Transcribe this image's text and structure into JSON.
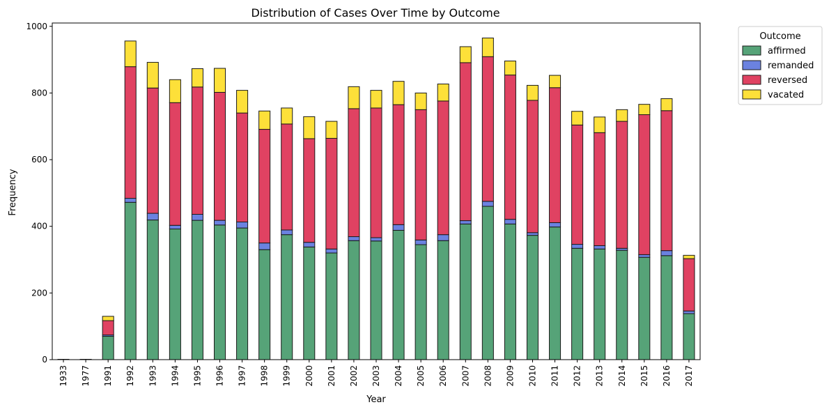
{
  "chart_data": {
    "type": "bar",
    "stacked": true,
    "title": "Distribution of Cases Over Time by Outcome",
    "xlabel": "Year",
    "ylabel": "Frequency",
    "ylim": [
      0,
      1010
    ],
    "yticks": [
      0,
      200,
      400,
      600,
      800,
      1000
    ],
    "grid": false,
    "legend": {
      "title": "Outcome",
      "placement": "outside-upper-right"
    },
    "categories": [
      "1933",
      "1977",
      "1991",
      "1992",
      "1993",
      "1994",
      "1995",
      "1996",
      "1997",
      "1998",
      "1999",
      "2000",
      "2001",
      "2002",
      "2003",
      "2004",
      "2005",
      "2006",
      "2007",
      "2008",
      "2009",
      "2010",
      "2011",
      "2012",
      "2013",
      "2014",
      "2015",
      "2016",
      "2017"
    ],
    "series": [
      {
        "name": "affirmed",
        "color": "#56a378",
        "values": [
          1,
          1,
          70,
          472,
          419,
          392,
          418,
          404,
          395,
          330,
          375,
          338,
          320,
          357,
          356,
          388,
          345,
          357,
          407,
          460,
          407,
          373,
          398,
          334,
          332,
          328,
          307,
          312,
          138
        ]
      },
      {
        "name": "remanded",
        "color": "#6b82e0",
        "values": [
          0,
          0,
          4,
          12,
          20,
          11,
          18,
          14,
          18,
          20,
          14,
          14,
          12,
          12,
          10,
          17,
          14,
          18,
          10,
          15,
          14,
          8,
          13,
          12,
          10,
          6,
          8,
          15,
          8
        ]
      },
      {
        "name": "reversed",
        "color": "#e04262",
        "values": [
          0,
          0,
          43,
          395,
          376,
          368,
          382,
          384,
          327,
          341,
          318,
          311,
          332,
          384,
          389,
          360,
          391,
          401,
          474,
          434,
          433,
          397,
          405,
          358,
          339,
          381,
          420,
          420,
          157
        ]
      },
      {
        "name": "vacated",
        "color": "#fde039",
        "values": [
          0,
          0,
          13,
          77,
          77,
          69,
          55,
          72,
          68,
          55,
          48,
          66,
          51,
          66,
          53,
          70,
          50,
          51,
          48,
          56,
          42,
          45,
          37,
          41,
          47,
          35,
          31,
          36,
          10
        ]
      }
    ]
  }
}
